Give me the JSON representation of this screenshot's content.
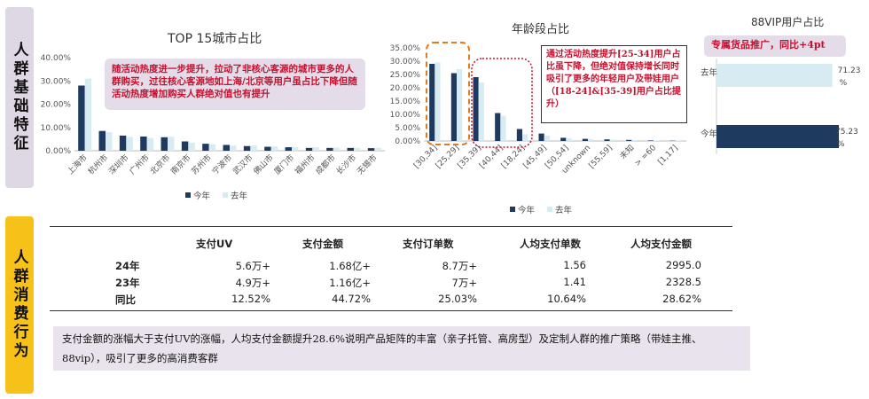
{
  "section_labels": {
    "demographics": "人群基础特征",
    "behavior": "人群消费行为"
  },
  "chart_data": [
    {
      "type": "bar",
      "title": "TOP 15城市占比",
      "categories": [
        "上海市",
        "杭州市",
        "深圳市",
        "广州市",
        "北京市",
        "南京市",
        "苏州市",
        "宁波市",
        "武汉市",
        "佛山市",
        "厦门市",
        "福州市",
        "成都市",
        "长沙市",
        "无锡市"
      ],
      "series": [
        {
          "name": "今年",
          "values": [
            0.28,
            0.085,
            0.065,
            0.061,
            0.058,
            0.04,
            0.03,
            0.025,
            0.02,
            0.017,
            0.015,
            0.012,
            0.012,
            0.012,
            0.011
          ]
        },
        {
          "name": "去年",
          "values": [
            0.31,
            0.08,
            0.06,
            0.055,
            0.06,
            0.035,
            0.028,
            0.022,
            0.022,
            0.018,
            0.016,
            0.015,
            0.013,
            0.012,
            0.012
          ]
        }
      ],
      "yticks": [
        "0.00%",
        "10.00%",
        "20.00%",
        "30.00%",
        "40.00%"
      ],
      "ylim": [
        0,
        0.4
      ],
      "legend": "bottom",
      "colors": {
        "今年": "#1f3a5f",
        "去年": "#d6ebf2"
      },
      "annotation": "随活动热度进一步提升，拉动了非核心客源的城市更多的人群购买，过往核心客源地如上海/北京等用户虽占比下降但随活动热度增加购买人群绝对值也有提升"
    },
    {
      "type": "bar",
      "title": "年龄段占比",
      "categories": [
        "[30,34]",
        "[25,29]",
        "[35,39]",
        "[40,44]",
        "[18,24]",
        "[45,49]",
        "[50,54]",
        "unknown",
        "[55,59]",
        "未知",
        "> =60",
        "[1,17]"
      ],
      "series": [
        {
          "name": "今年",
          "values": [
            0.29,
            0.255,
            0.24,
            0.105,
            0.045,
            0.028,
            0.012,
            0.008,
            0.006,
            0.004,
            0.002,
            0.001
          ]
        },
        {
          "name": "去年",
          "values": [
            0.295,
            0.27,
            0.22,
            0.095,
            0.025,
            0.02,
            0.01,
            0.007,
            0.005,
            0.004,
            0.002,
            0.001
          ]
        }
      ],
      "yticks": [
        "0.00%",
        "5.00%",
        "10.00%",
        "15.00%",
        "20.00%",
        "25.00%",
        "30.00%",
        "35.00%"
      ],
      "ylim": [
        0,
        0.35
      ],
      "legend": "bottom",
      "colors": {
        "今年": "#1f3a5f",
        "去年": "#d6ebf2"
      },
      "annotation": "通过活动热度提升[25-34]用户占比虽下降，但绝对值保持增长同时吸引了更多的年轻用户及带娃用户（[18-24]&[35-39]用户占比提升）"
    },
    {
      "type": "bar",
      "orientation": "horizontal",
      "title": "88VIP用户占比",
      "categories": [
        "去年",
        "今年"
      ],
      "values": [
        71.23,
        75.23
      ],
      "value_labels": [
        "71.23 %",
        "75.23 %"
      ],
      "colors": {
        "去年": "#d6ebf2",
        "今年": "#1f3a5f"
      },
      "annotation": "专属货品推广，同比+4pt"
    },
    {
      "type": "table",
      "columns": [
        "",
        "支付UV",
        "支付金额",
        "支付订单数",
        "人均支付单数",
        "人均支付金额"
      ],
      "rows": [
        [
          "24年",
          "5.6万+",
          "1.68亿+",
          "8.7万+",
          "1.56",
          "2995.0"
        ],
        [
          "23年",
          "4.9万+",
          "1.16亿+",
          "7万+",
          "1.41",
          "2328.5"
        ],
        [
          "同比",
          "12.52%",
          "44.72%",
          "25.03%",
          "10.64%",
          "28.62%"
        ]
      ]
    }
  ],
  "summary": "支付金额的涨幅大于支付UV的涨幅，人均支付金额提升28.6%说明产品矩阵的丰富（亲子托管、高房型）及定制人群的推广策略（带娃主推、88vip），吸引了更多的高消费客群"
}
